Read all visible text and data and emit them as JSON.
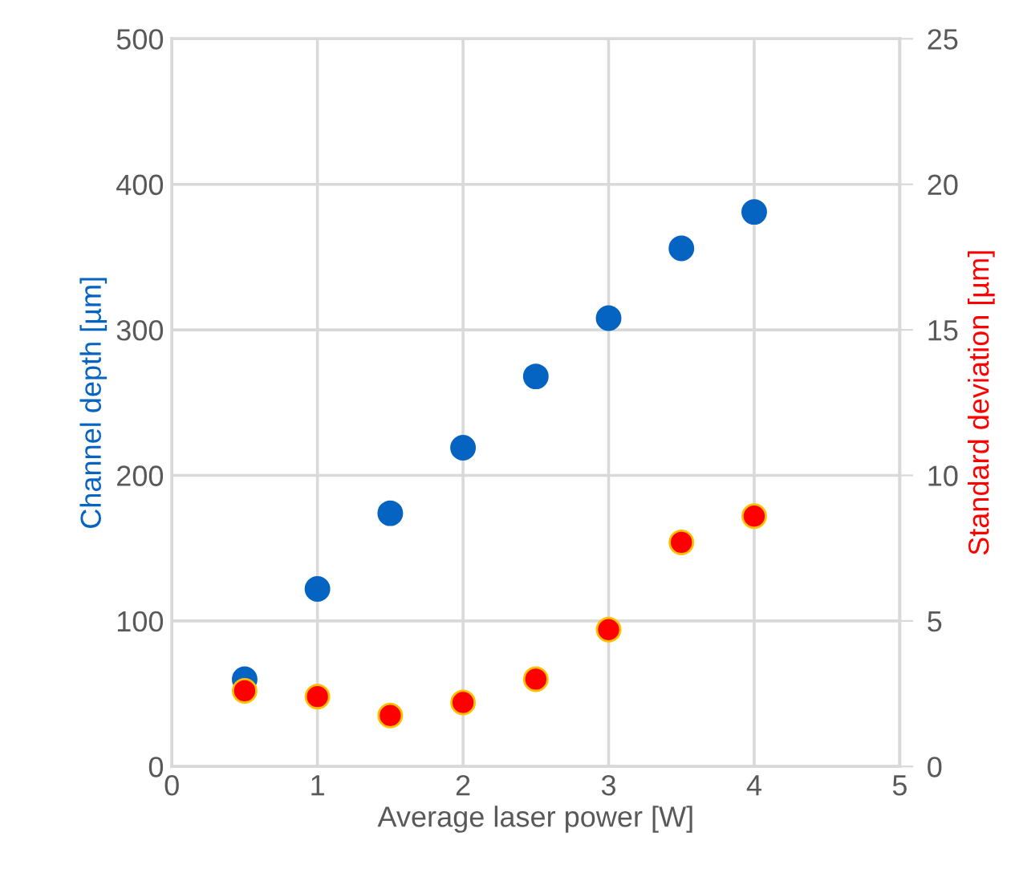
{
  "chart_data": {
    "type": "scatter",
    "xlabel": "Average laser power [W]",
    "ylabel": "Channel depth [µm]",
    "y2label": "Standard deviation [µm]",
    "x": [
      0.5,
      1,
      1.5,
      2,
      2.5,
      3,
      3.5,
      4
    ],
    "series": [
      {
        "color": "#0563c1",
        "values": [
          60,
          122,
          174,
          219,
          268,
          308,
          356,
          381
        ]
      },
      {
        "color": "#ff0000",
        "axis": "y2",
        "values": [
          2.6,
          2.4,
          1.75,
          2.2,
          3.0,
          4.7,
          7.7,
          8.6
        ]
      }
    ],
    "xlim": [
      0,
      5
    ],
    "xticks": [
      0,
      1,
      2,
      3,
      4,
      5
    ],
    "ylim": [
      0,
      500
    ],
    "yticks": [
      0,
      100,
      200,
      300,
      400,
      500
    ],
    "y2lim": [
      0,
      25
    ],
    "y2ticks": [
      0,
      5,
      10,
      15,
      20,
      25
    ],
    "grid": true,
    "marker": "circle",
    "legend": false
  }
}
